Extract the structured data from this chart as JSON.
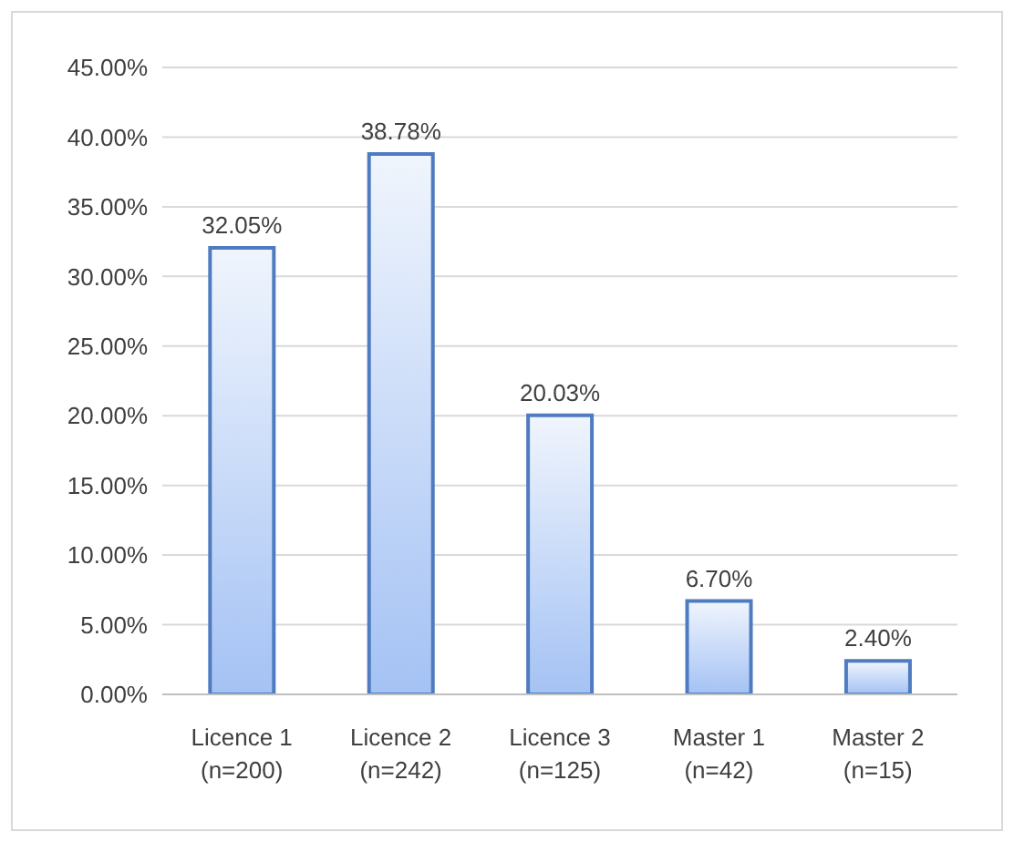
{
  "chart_data": {
    "type": "bar",
    "categories": [
      "Licence 1 (n=200)",
      "Licence 2 (n=242)",
      "Licence 3 (n=125)",
      "Master 1 (n=42)",
      "Master 2 (n=15)"
    ],
    "values": [
      32.05,
      38.78,
      20.03,
      6.7,
      2.4
    ],
    "value_labels": [
      "32.05%",
      "38.78%",
      "20.03%",
      "6.70%",
      "2.40%"
    ],
    "color": "#4f7cc0",
    "ylim": [
      0,
      45
    ],
    "yticks": [
      {
        "value": 0,
        "label": "0.00%"
      },
      {
        "value": 5,
        "label": "5.00%"
      },
      {
        "value": 10,
        "label": "10.00%"
      },
      {
        "value": 15,
        "label": "15.00%"
      },
      {
        "value": 20,
        "label": "20.00%"
      },
      {
        "value": 25,
        "label": "25.00%"
      },
      {
        "value": 30,
        "label": "30.00%"
      },
      {
        "value": 35,
        "label": "35.00%"
      },
      {
        "value": 40,
        "label": "40.00%"
      },
      {
        "value": 45,
        "label": "45.00%"
      }
    ],
    "grid": "y"
  }
}
